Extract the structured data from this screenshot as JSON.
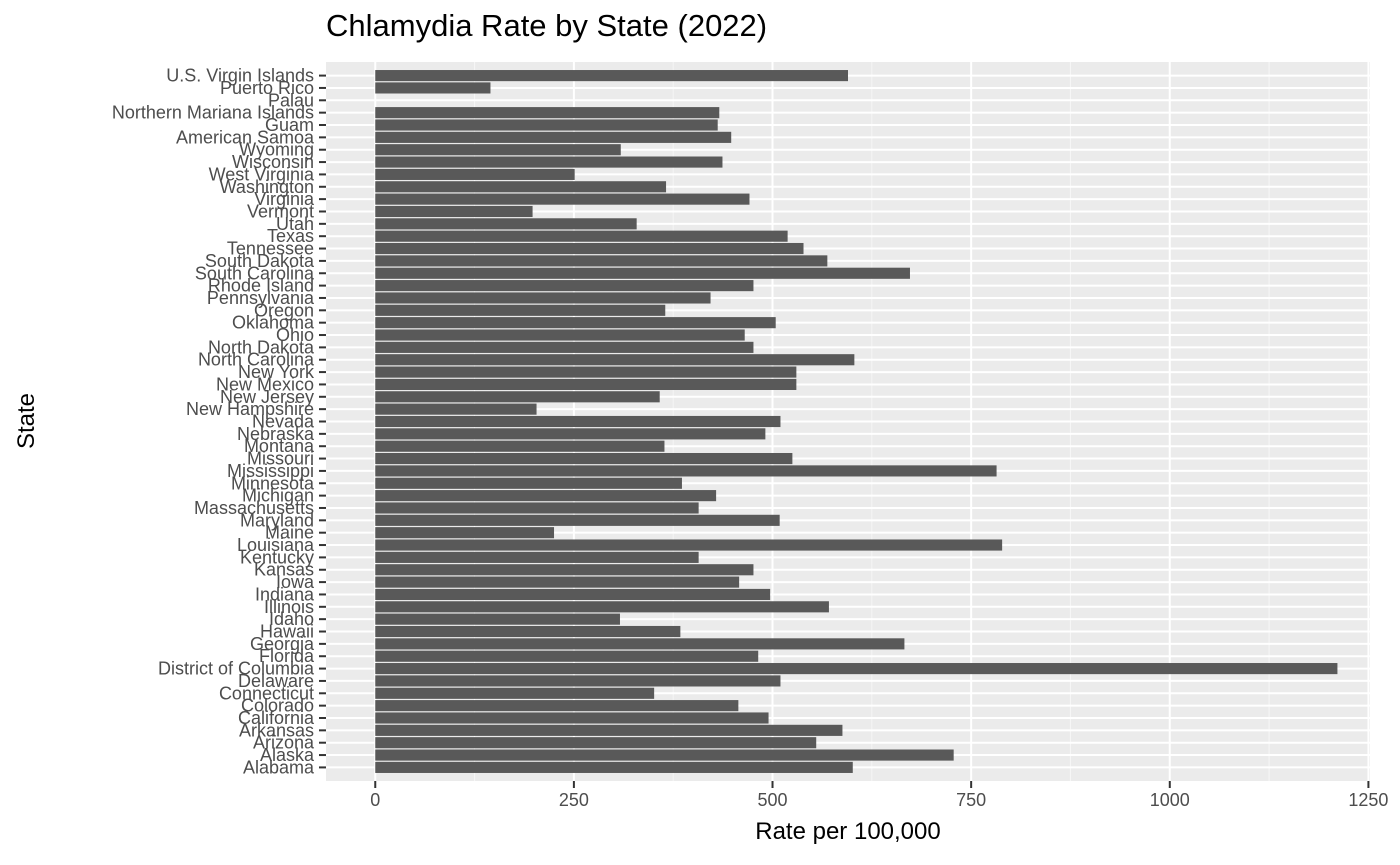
{
  "chart_data": {
    "type": "bar",
    "orientation": "horizontal",
    "title": "Chlamydia Rate by State (2022)",
    "xlabel": "Rate per 100,000",
    "ylabel": "State",
    "xlim": [
      -62,
      1252
    ],
    "x_ticks": [
      0,
      250,
      500,
      750,
      1000,
      1250
    ],
    "x_tick_labels": [
      "0",
      "250",
      "500",
      "750",
      "1000",
      "1250"
    ],
    "grid": true,
    "legend": "none",
    "bar_color": "#595959",
    "panel_background": "#ebebeb",
    "categories": [
      "Alabama",
      "Alaska",
      "Arizona",
      "Arkansas",
      "California",
      "Colorado",
      "Connecticut",
      "Delaware",
      "District of Columbia",
      "Florida",
      "Georgia",
      "Hawaii",
      "Idaho",
      "Illinois",
      "Indiana",
      "Iowa",
      "Kansas",
      "Kentucky",
      "Louisiana",
      "Maine",
      "Maryland",
      "Massachusetts",
      "Michigan",
      "Minnesota",
      "Mississippi",
      "Missouri",
      "Montana",
      "Nebraska",
      "Nevada",
      "New Hampshire",
      "New Jersey",
      "New Mexico",
      "New York",
      "North Carolina",
      "North Dakota",
      "Ohio",
      "Oklahoma",
      "Oregon",
      "Pennsylvania",
      "Rhode Island",
      "South Carolina",
      "South Dakota",
      "Tennessee",
      "Texas",
      "Utah",
      "Vermont",
      "Virginia",
      "Washington",
      "West Virginia",
      "Wisconsin",
      "Wyoming",
      "American Samoa",
      "Guam",
      "Northern Mariana Islands",
      "Palau",
      "Puerto Rico",
      "U.S. Virgin Islands"
    ],
    "values": [
      601,
      728,
      555,
      588,
      495,
      457,
      351,
      510,
      1211,
      482,
      666,
      384,
      308,
      571,
      497,
      458,
      476,
      407,
      789,
      225,
      509,
      407,
      429,
      386,
      782,
      525,
      364,
      491,
      510,
      203,
      358,
      530,
      530,
      603,
      476,
      465,
      504,
      365,
      422,
      476,
      673,
      569,
      539,
      519,
      329,
      198,
      471,
      366,
      251,
      437,
      309,
      448,
      431,
      433,
      0,
      145,
      595
    ]
  }
}
